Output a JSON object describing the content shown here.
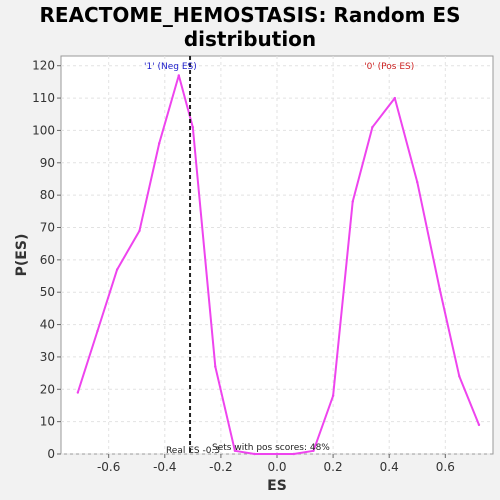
{
  "chart_data": {
    "type": "line",
    "title_line1": "REACTOME_HEMOSTASIS: Random ES",
    "title_line2": "distribution",
    "xlabel": "ES",
    "ylabel": "P(ES)",
    "xlim": [
      -0.77,
      0.77
    ],
    "ylim": [
      0,
      123
    ],
    "xticks": [
      -0.6,
      -0.4,
      -0.2,
      0.0,
      0.2,
      0.4,
      0.6
    ],
    "xtick_labels": [
      "-0.6",
      "-0.4",
      "-0.2",
      "0.0",
      "0.2",
      "0.4",
      "0.6"
    ],
    "yticks": [
      0,
      10,
      20,
      30,
      40,
      50,
      60,
      70,
      80,
      90,
      100,
      110,
      120
    ],
    "ytick_labels": [
      "0",
      "10",
      "20",
      "30",
      "40",
      "50",
      "60",
      "70",
      "80",
      "90",
      "100",
      "110",
      "120"
    ],
    "grid": true,
    "series": [
      {
        "color": "#ee44ee",
        "x": [
          -0.71,
          -0.64,
          -0.57,
          -0.49,
          -0.42,
          -0.35,
          -0.3,
          -0.22,
          -0.15,
          -0.08,
          0.0,
          0.06,
          0.13,
          0.2,
          0.27,
          0.34,
          0.42,
          0.5,
          0.58,
          0.65,
          0.72
        ],
        "y": [
          19,
          38,
          57,
          69,
          96,
          117,
          101,
          27,
          1,
          0,
          0,
          0,
          1,
          18,
          78,
          101,
          110,
          84,
          51,
          24,
          9
        ]
      }
    ],
    "real_es": -0.31,
    "real_es_label": "Real ES -0.3",
    "neg_label": "'1' (Neg ES)",
    "neg_color": "#2222cc",
    "pos_label": "'0' (Pos ES)",
    "pos_color": "#cc2222",
    "pos_scores_label": "Sets with pos scores: 48%"
  }
}
